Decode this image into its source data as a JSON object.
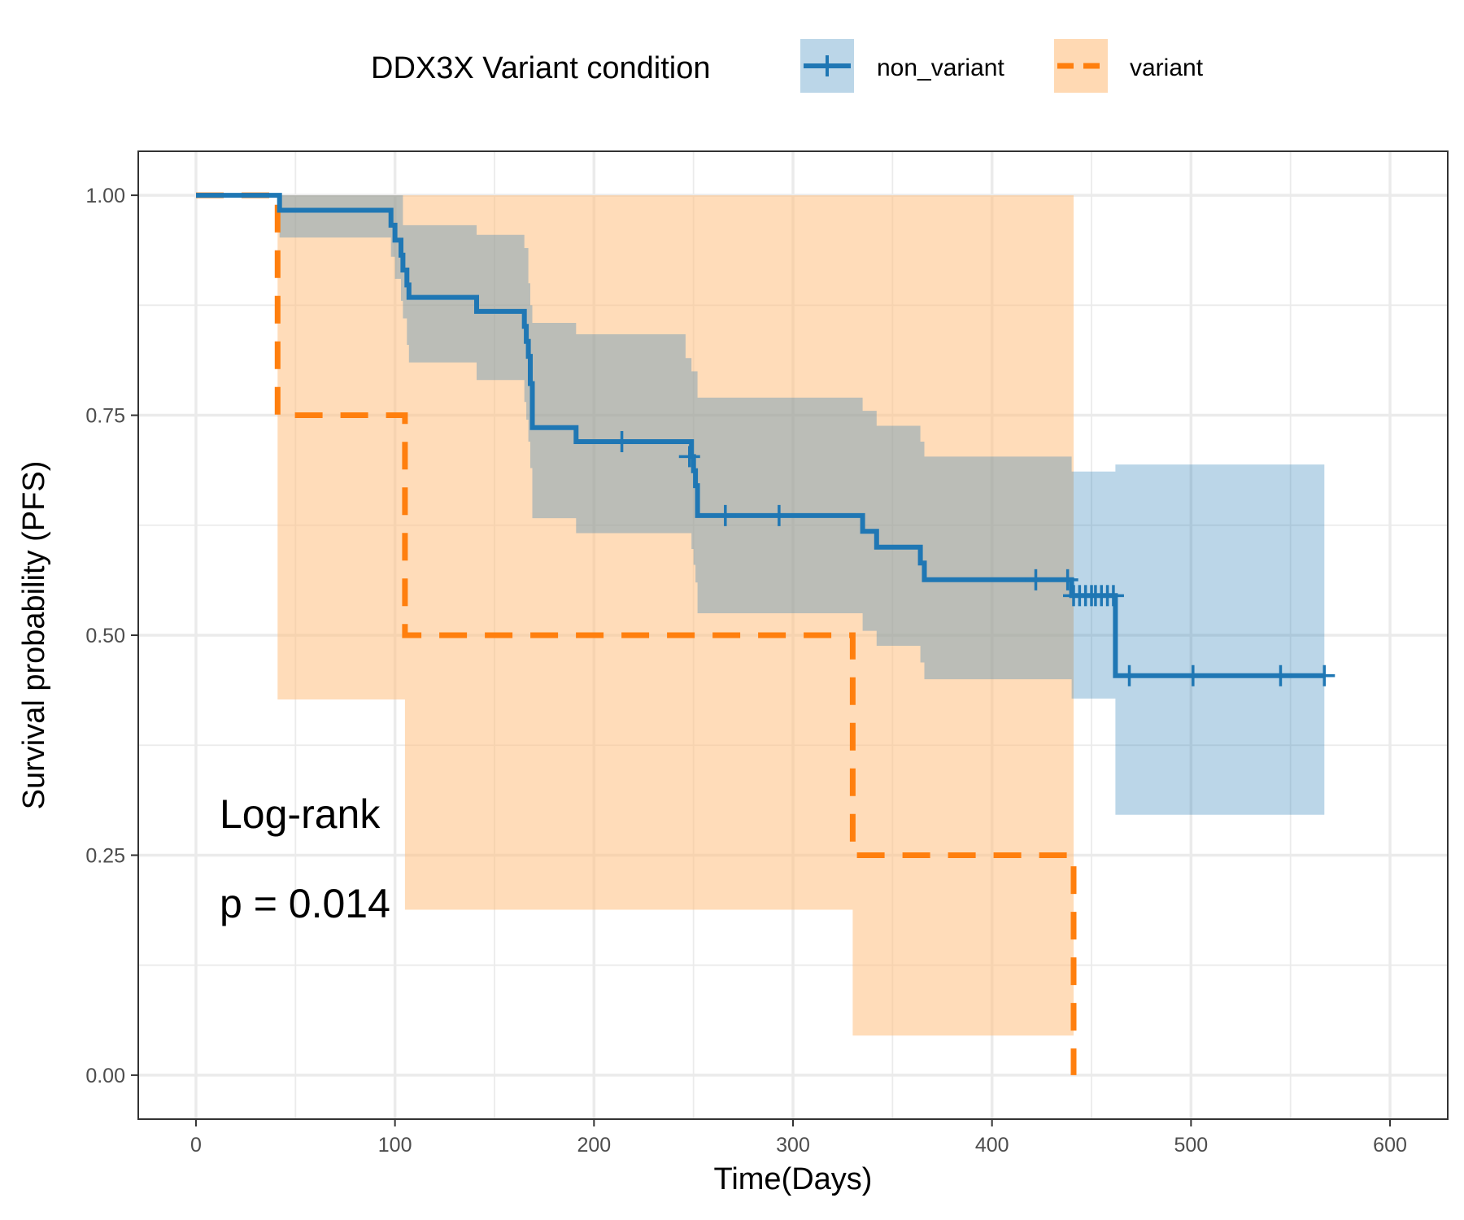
{
  "chart_data": {
    "type": "line",
    "subtype": "kaplan-meier",
    "xlabel": "Time(Days)",
    "ylabel": "Survival probability (PFS)",
    "xlim": [
      -29,
      629
    ],
    "ylim": [
      -0.05,
      1.05
    ],
    "x_ticks": [
      0,
      100,
      200,
      300,
      400,
      500,
      600
    ],
    "y_ticks": [
      0.0,
      0.25,
      0.5,
      0.75,
      1.0
    ],
    "x_tick_labels": [
      "0",
      "100",
      "200",
      "300",
      "400",
      "500",
      "600"
    ],
    "y_tick_labels": [
      "0.00",
      "0.25",
      "0.50",
      "0.75",
      "1.00"
    ],
    "grid": true,
    "legend": {
      "title": "DDX3X Variant condition",
      "placement": "top",
      "entries": [
        "non_variant",
        "variant"
      ]
    },
    "annotations": [
      "Log-rank",
      "p = 0.014"
    ],
    "series": [
      {
        "name": "non_variant",
        "color": "#1f77b4",
        "ci_fill": "#1f77b4",
        "line_style": "solid",
        "steps": [
          [
            0,
            1.0
          ],
          [
            42,
            0.983
          ],
          [
            98,
            0.966
          ],
          [
            100,
            0.949
          ],
          [
            103,
            0.932
          ],
          [
            104,
            0.915
          ],
          [
            106,
            0.898
          ],
          [
            107,
            0.884
          ],
          [
            141,
            0.868
          ],
          [
            165,
            0.851
          ],
          [
            166,
            0.834
          ],
          [
            167,
            0.817
          ],
          [
            168,
            0.786
          ],
          [
            169,
            0.736
          ],
          [
            191,
            0.72
          ],
          [
            249,
            0.703
          ],
          [
            250,
            0.687
          ],
          [
            251,
            0.67
          ],
          [
            252,
            0.636
          ],
          [
            335,
            0.618
          ],
          [
            342,
            0.6
          ],
          [
            364,
            0.582
          ],
          [
            366,
            0.563
          ],
          [
            440,
            0.545
          ],
          [
            462,
            0.454
          ],
          [
            567,
            0.454
          ]
        ],
        "ci_upper": [
          [
            0,
            1.0
          ],
          [
            42,
            1.0
          ],
          [
            104,
            0.966
          ],
          [
            141,
            0.955
          ],
          [
            165,
            0.94
          ],
          [
            167,
            0.9
          ],
          [
            168,
            0.875
          ],
          [
            169,
            0.855
          ],
          [
            191,
            0.842
          ],
          [
            246,
            0.815
          ],
          [
            249,
            0.8
          ],
          [
            252,
            0.77
          ],
          [
            335,
            0.755
          ],
          [
            342,
            0.738
          ],
          [
            364,
            0.72
          ],
          [
            366,
            0.703
          ],
          [
            440,
            0.686
          ],
          [
            462,
            0.694
          ],
          [
            567,
            0.694
          ]
        ],
        "ci_lower": [
          [
            0,
            1.0
          ],
          [
            42,
            0.952
          ],
          [
            98,
            0.93
          ],
          [
            100,
            0.905
          ],
          [
            103,
            0.88
          ],
          [
            104,
            0.86
          ],
          [
            106,
            0.83
          ],
          [
            107,
            0.81
          ],
          [
            141,
            0.79
          ],
          [
            165,
            0.765
          ],
          [
            166,
            0.745
          ],
          [
            167,
            0.72
          ],
          [
            168,
            0.69
          ],
          [
            169,
            0.633
          ],
          [
            191,
            0.616
          ],
          [
            249,
            0.598
          ],
          [
            250,
            0.58
          ],
          [
            251,
            0.56
          ],
          [
            252,
            0.525
          ],
          [
            335,
            0.505
          ],
          [
            342,
            0.488
          ],
          [
            364,
            0.469
          ],
          [
            366,
            0.45
          ],
          [
            440,
            0.428
          ],
          [
            462,
            0.296
          ],
          [
            567,
            0.296
          ]
        ],
        "censored": [
          [
            214,
            0.72
          ],
          [
            248,
            0.703
          ],
          [
            266,
            0.636
          ],
          [
            293,
            0.636
          ],
          [
            422,
            0.563
          ],
          [
            438,
            0.563
          ],
          [
            441,
            0.545
          ],
          [
            444,
            0.545
          ],
          [
            447,
            0.545
          ],
          [
            450,
            0.545
          ],
          [
            452,
            0.545
          ],
          [
            455,
            0.545
          ],
          [
            458,
            0.545
          ],
          [
            461,
            0.545
          ],
          [
            469,
            0.454
          ],
          [
            501,
            0.454
          ],
          [
            545,
            0.454
          ],
          [
            567,
            0.454
          ]
        ]
      },
      {
        "name": "variant",
        "color": "#ff7f0e",
        "ci_fill": "#ffbf80",
        "line_style": "dashed",
        "steps": [
          [
            0,
            1.0
          ],
          [
            41,
            0.75
          ],
          [
            105,
            0.5
          ],
          [
            330,
            0.25
          ],
          [
            441,
            0.0
          ]
        ],
        "ci_upper": [
          [
            0,
            1.0
          ],
          [
            441,
            1.0
          ]
        ],
        "ci_lower": [
          [
            0,
            1.0
          ],
          [
            41,
            0.427
          ],
          [
            105,
            0.188
          ],
          [
            330,
            0.045
          ],
          [
            441,
            0.045
          ]
        ]
      }
    ]
  }
}
